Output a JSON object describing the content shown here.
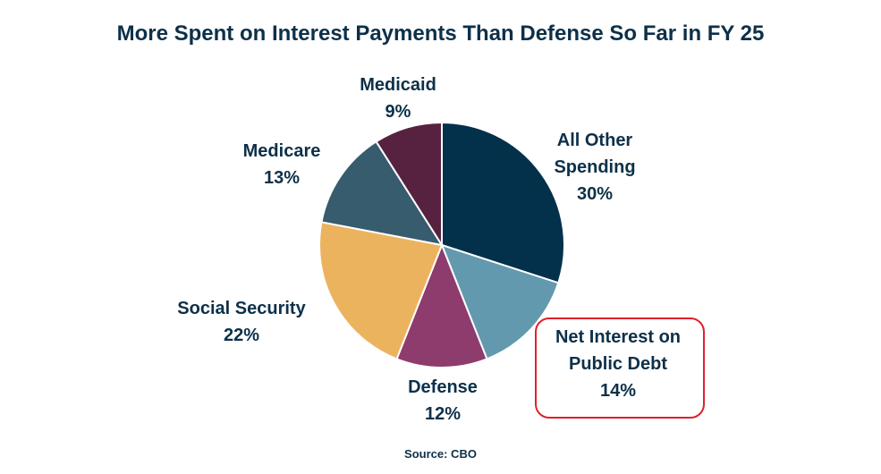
{
  "chart_data": {
    "type": "pie",
    "title": "More Spent on Interest Payments Than Defense So Far in FY 25",
    "source": "Source: CBO",
    "start": "12 o'clock, clockwise",
    "slices": [
      {
        "name": "All Other Spending",
        "lines": [
          "All Other",
          "Spending"
        ],
        "value": 30,
        "pct_label": "30%",
        "color": "#03304a"
      },
      {
        "name": "Net Interest on Public Debt",
        "lines": [
          "Net Interest on",
          "Public Debt"
        ],
        "value": 14,
        "pct_label": "14%",
        "color": "#6399ae",
        "highlighted": true,
        "highlight_color": "#e0202a"
      },
      {
        "name": "Defense",
        "lines": [
          "Defense"
        ],
        "value": 12,
        "pct_label": "12%",
        "color": "#8e3b6e"
      },
      {
        "name": "Social Security",
        "lines": [
          "Social Security"
        ],
        "value": 22,
        "pct_label": "22%",
        "color": "#ecb35f"
      },
      {
        "name": "Medicare",
        "lines": [
          "Medicare"
        ],
        "value": 13,
        "pct_label": "13%",
        "color": "#365c6d"
      },
      {
        "name": "Medicaid",
        "lines": [
          "Medicaid"
        ],
        "value": 9,
        "pct_label": "9%",
        "color": "#56223f"
      }
    ]
  }
}
